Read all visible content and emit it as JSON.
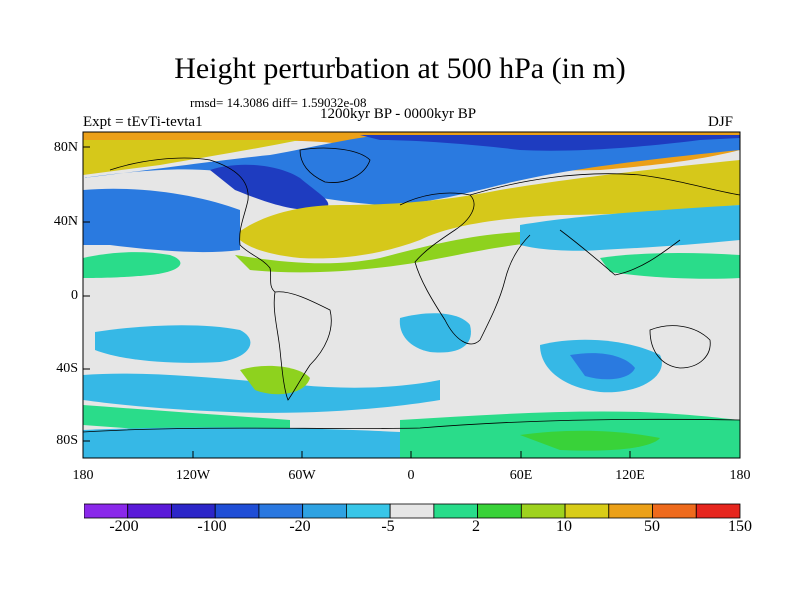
{
  "title": "Height perturbation at 500 hPa (in m)",
  "stats": "rmsd= 14.3086 diff= 1.59032e-08",
  "period": "1200kyr BP - 0000kyr BP",
  "experiment": "Expt = tEvTi-tevta1",
  "season": "DJF",
  "lat_ticks": [
    "80N",
    "40N",
    "0",
    "40S",
    "80S"
  ],
  "lon_ticks": [
    "180",
    "120W",
    "60W",
    "0",
    "60E",
    "120E",
    "180"
  ],
  "colorbar": {
    "colors": [
      "#8a28ea",
      "#5a1ad8",
      "#2c26c8",
      "#1f4ed6",
      "#2a78e0",
      "#2ea2e2",
      "#38c6e8",
      "#e6e6e6",
      "#28dc8a",
      "#39d239",
      "#9ed21e",
      "#d8cc18",
      "#eba018",
      "#ee6a1c",
      "#e6261e"
    ],
    "labels": [
      "-200",
      "-100",
      "-20",
      "-5",
      "2",
      "10",
      "50",
      "150"
    ]
  },
  "colors": {
    "missing": "#e6e6e6",
    "deep_neg": "#1e3cc0",
    "mid_neg": "#2a7ae0",
    "light_neg": "#36b8e6",
    "light_pos": "#2adc8a",
    "mid_pos": "#8ed21e",
    "high_pos": "#d6c81a",
    "top_pos": "#eba018"
  }
}
